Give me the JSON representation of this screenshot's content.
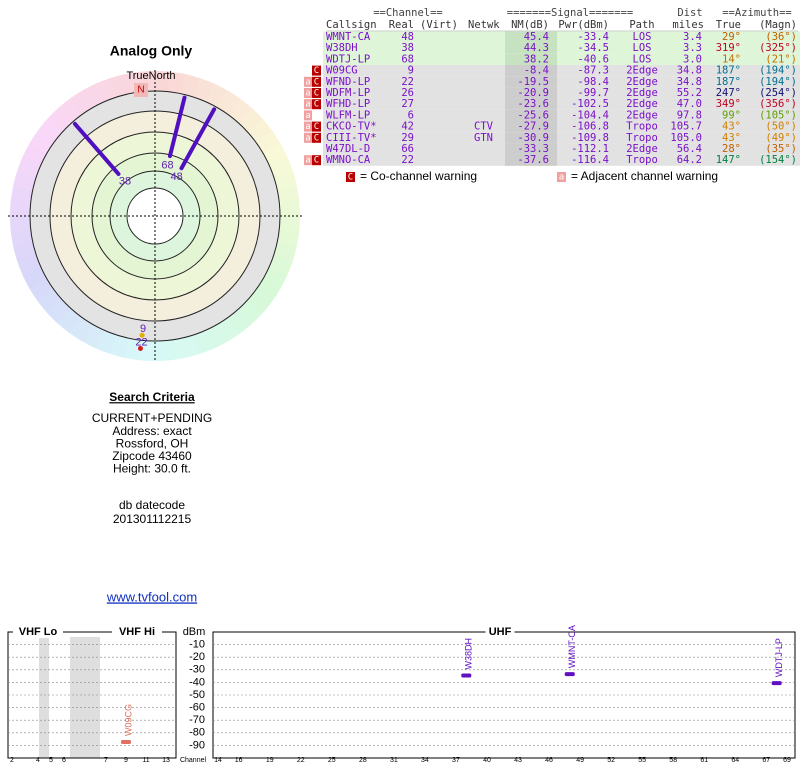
{
  "polar": {
    "title": "Analog Only",
    "north_label": "TrueNorth",
    "north_mark": "N",
    "stations": [
      {
        "label": "48",
        "azimuth": 29,
        "nm": 45.4,
        "color": "#5010c0"
      },
      {
        "label": "38",
        "azimuth": 319,
        "nm": 44.3,
        "color": "#5010c0"
      },
      {
        "label": "68",
        "azimuth": 14,
        "nm": 38.2,
        "color": "#5010c0"
      },
      {
        "label": "9",
        "azimuth": 187,
        "nm": -8.4,
        "color": "#e0b000"
      },
      {
        "label": "22",
        "azimuth": 187,
        "nm": -19.5,
        "color": "#d02020"
      }
    ]
  },
  "table": {
    "group_headers": [
      "==Channel==",
      "=======Signal=======",
      "Dist",
      "==Azimuth=="
    ],
    "columns": [
      "Callsign",
      "Real",
      "(Virt)",
      "Netwk",
      "NM(dB)",
      "Pwr(dBm)",
      "Path",
      "miles",
      "True",
      "(Magn)"
    ],
    "rows": [
      {
        "callsign": "WMNT-CA",
        "real": "48",
        "nm": "45.4",
        "pwr": "-33.4",
        "path": "LOS",
        "dist": "3.4",
        "az_true": "29°",
        "az_magn": "(36°)",
        "az_color": "#c06000"
      },
      {
        "callsign": "W38DH",
        "real": "38",
        "nm": "44.3",
        "pwr": "-34.5",
        "path": "LOS",
        "dist": "3.3",
        "az_true": "319°",
        "az_magn": "(325°)",
        "az_color": "#c00020"
      },
      {
        "callsign": "WDTJ-LP",
        "real": "68",
        "nm": "38.2",
        "pwr": "-40.6",
        "path": "LOS",
        "dist": "3.0",
        "az_true": "14°",
        "az_magn": "(21°)",
        "az_color": "#c07000"
      },
      {
        "warnings": [
          "C"
        ],
        "callsign": "W09CG",
        "real": "9",
        "nm": "-8.4",
        "pwr": "-87.3",
        "path": "2Edge",
        "dist": "34.8",
        "az_true": "187°",
        "az_magn": "(194°)",
        "az_color": "#007090"
      },
      {
        "warnings": [
          "a",
          "C"
        ],
        "callsign": "WFND-LP",
        "real": "22",
        "nm": "-19.5",
        "pwr": "-98.4",
        "path": "2Edge",
        "dist": "34.8",
        "az_true": "187°",
        "az_magn": "(194°)",
        "az_color": "#007090"
      },
      {
        "warnings": [
          "a",
          "C"
        ],
        "callsign": "WDFM-LP",
        "real": "26",
        "nm": "-20.9",
        "pwr": "-99.7",
        "path": "2Edge",
        "dist": "55.2",
        "az_true": "247°",
        "az_magn": "(254°)",
        "az_color": "#101070"
      },
      {
        "warnings": [
          "a",
          "C"
        ],
        "callsign": "WFHD-LP",
        "real": "27",
        "nm": "-23.6",
        "pwr": "-102.5",
        "path": "2Edge",
        "dist": "47.0",
        "az_true": "349°",
        "az_magn": "(356°)",
        "az_color": "#c00020"
      },
      {
        "warnings": [
          "a"
        ],
        "callsign": "WLFM-LP",
        "real": "6",
        "nm": "-25.6",
        "pwr": "-104.4",
        "path": "2Edge",
        "dist": "97.8",
        "az_true": "99°",
        "az_magn": "(105°)",
        "az_color": "#60a000"
      },
      {
        "warnings": [
          "a",
          "C"
        ],
        "callsign": "CKCO-TV*",
        "real": "42",
        "netwk": "CTV",
        "nm": "-27.9",
        "pwr": "-106.8",
        "path": "Tropo",
        "dist": "105.7",
        "az_true": "43°",
        "az_magn": "(50°)",
        "az_color": "#d08000"
      },
      {
        "warnings": [
          "a",
          "C"
        ],
        "callsign": "CIII-TV*",
        "real": "29",
        "netwk": "GTN",
        "nm": "-30.9",
        "pwr": "-109.8",
        "path": "Tropo",
        "dist": "105.0",
        "az_true": "43°",
        "az_magn": "(49°)",
        "az_color": "#d08000"
      },
      {
        "callsign": "W47DL-D",
        "real": "66",
        "nm": "-33.3",
        "pwr": "-112.1",
        "path": "2Edge",
        "dist": "56.4",
        "az_true": "28°",
        "az_magn": "(35°)",
        "az_color": "#c06000"
      },
      {
        "warnings": [
          "a",
          "C"
        ],
        "callsign": "WMNO-CA",
        "real": "22",
        "nm": "-37.6",
        "pwr": "-116.4",
        "path": "Tropo",
        "dist": "64.2",
        "az_true": "147°",
        "az_magn": "(154°)",
        "az_color": "#008040"
      }
    ]
  },
  "legend": [
    {
      "badge": "C",
      "text": "= Co-channel warning"
    },
    {
      "badge": "a",
      "text": "= Adjacent channel warning"
    }
  ],
  "search": {
    "title": "Search Criteria",
    "lines": [
      "CURRENT+PENDING",
      "Address: exact",
      "Rossford, OH",
      "Zipcode 43460",
      "Height: 30.0 ft."
    ],
    "datecode_label": "db datecode",
    "datecode": "201301112215"
  },
  "link": "www.tvfool.com",
  "spectrum": {
    "ylabel": "dBm",
    "xlabel": "Channel",
    "ylim": [
      0,
      -100
    ],
    "yticks": [
      -10,
      -20,
      -30,
      -40,
      -50,
      -60,
      -70,
      -80,
      -90
    ],
    "grid": true,
    "sections": [
      {
        "name": "VHF Lo",
        "xlim": [
          2,
          6
        ],
        "xticks": [
          2,
          4,
          5,
          6
        ]
      },
      {
        "name": "VHF Hi",
        "xlim": [
          7,
          13
        ],
        "xticks": [
          7,
          9,
          11,
          13
        ]
      },
      {
        "name": "UHF",
        "xlim": [
          14,
          69
        ],
        "xticks": [
          14,
          16,
          19,
          22,
          25,
          28,
          31,
          34,
          37,
          40,
          43,
          46,
          49,
          52,
          55,
          58,
          61,
          64,
          67,
          69
        ]
      }
    ],
    "bars": [
      {
        "label": "W38DH",
        "channel": 38,
        "value": -34.5,
        "color": "#6010c0"
      },
      {
        "label": "WMNT-CA",
        "channel": 48,
        "value": -33.4,
        "color": "#6010c0"
      },
      {
        "label": "WDTJ-LP",
        "channel": 68,
        "value": -40.6,
        "color": "#6010c0"
      },
      {
        "label": "W09CG",
        "channel": 9,
        "value": -87.3,
        "color": "#e07060"
      }
    ]
  }
}
